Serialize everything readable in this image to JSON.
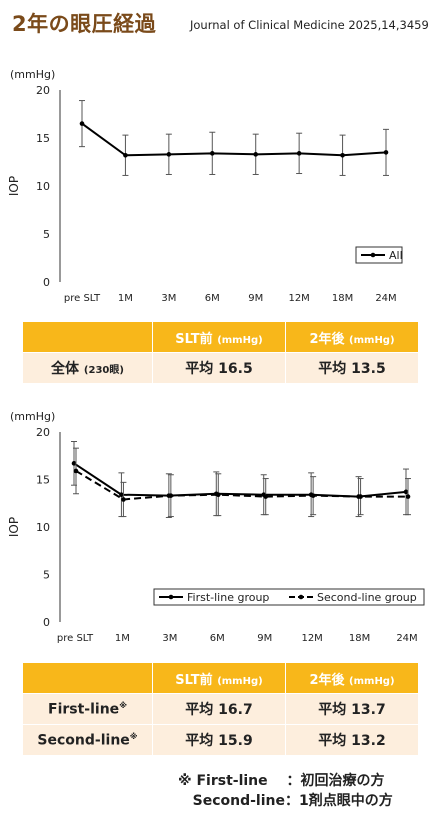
{
  "header": {
    "title": "2年の眼圧経過",
    "journal": "Journal of Clinical Medicine 2025,14,3459"
  },
  "chart_data": [
    {
      "type": "line",
      "unit_label": "(mmHg)",
      "ylabel": "IOP",
      "xlabel": "",
      "ylim": [
        0,
        20
      ],
      "yticks": [
        0,
        5,
        10,
        15,
        20
      ],
      "categories": [
        "pre SLT",
        "1M",
        "3M",
        "6M",
        "9M",
        "12M",
        "18M",
        "24M"
      ],
      "grid": false,
      "legend_position": "bottom-right",
      "series": [
        {
          "name": "All",
          "style": "solid",
          "values": [
            16.5,
            13.2,
            13.3,
            13.4,
            13.3,
            13.4,
            13.2,
            13.5
          ],
          "error": [
            2.4,
            2.1,
            2.1,
            2.2,
            2.1,
            2.1,
            2.1,
            2.4
          ]
        }
      ]
    },
    {
      "type": "line",
      "unit_label": "(mmHg)",
      "ylabel": "IOP",
      "xlabel": "",
      "ylim": [
        0,
        20
      ],
      "yticks": [
        0,
        5,
        10,
        15,
        20
      ],
      "categories": [
        "pre SLT",
        "1M",
        "3M",
        "6M",
        "9M",
        "12M",
        "18M",
        "24M"
      ],
      "grid": false,
      "legend_position": "bottom",
      "series": [
        {
          "name": "First-line group",
          "style": "solid",
          "values": [
            16.7,
            13.4,
            13.3,
            13.5,
            13.4,
            13.4,
            13.2,
            13.7
          ],
          "error": [
            2.3,
            2.3,
            2.3,
            2.3,
            2.1,
            2.3,
            2.1,
            2.4
          ]
        },
        {
          "name": "Second-line group",
          "style": "dashed",
          "values": [
            15.9,
            12.9,
            13.3,
            13.4,
            13.2,
            13.3,
            13.2,
            13.2
          ],
          "error": [
            2.4,
            1.8,
            2.2,
            2.2,
            1.9,
            2.0,
            1.9,
            1.9
          ]
        }
      ]
    }
  ],
  "table1": {
    "col1": "SLT前",
    "col2": "2年後",
    "unit": "(mmHg)",
    "rows": [
      {
        "label": "全体",
        "sub": "(230眼)",
        "before": "平均 16.5",
        "after": "平均 13.5"
      }
    ]
  },
  "table2": {
    "col1": "SLT前",
    "col2": "2年後",
    "unit": "(mmHg)",
    "rows": [
      {
        "label": "First-line",
        "mark": "※",
        "before": "平均 16.7",
        "after": "平均 13.7"
      },
      {
        "label": "Second-line",
        "mark": "※",
        "before": "平均 15.9",
        "after": "平均 13.2"
      }
    ]
  },
  "footnote": {
    "line1": "※ First-line　 ：初回治療の方",
    "line2": "   Second-line：1剤点眼中の方"
  },
  "colors": {
    "title": "#7a4a1a",
    "header_bg": "#f8b71a",
    "row_bg": "#fdeedd",
    "line": "#000000"
  }
}
